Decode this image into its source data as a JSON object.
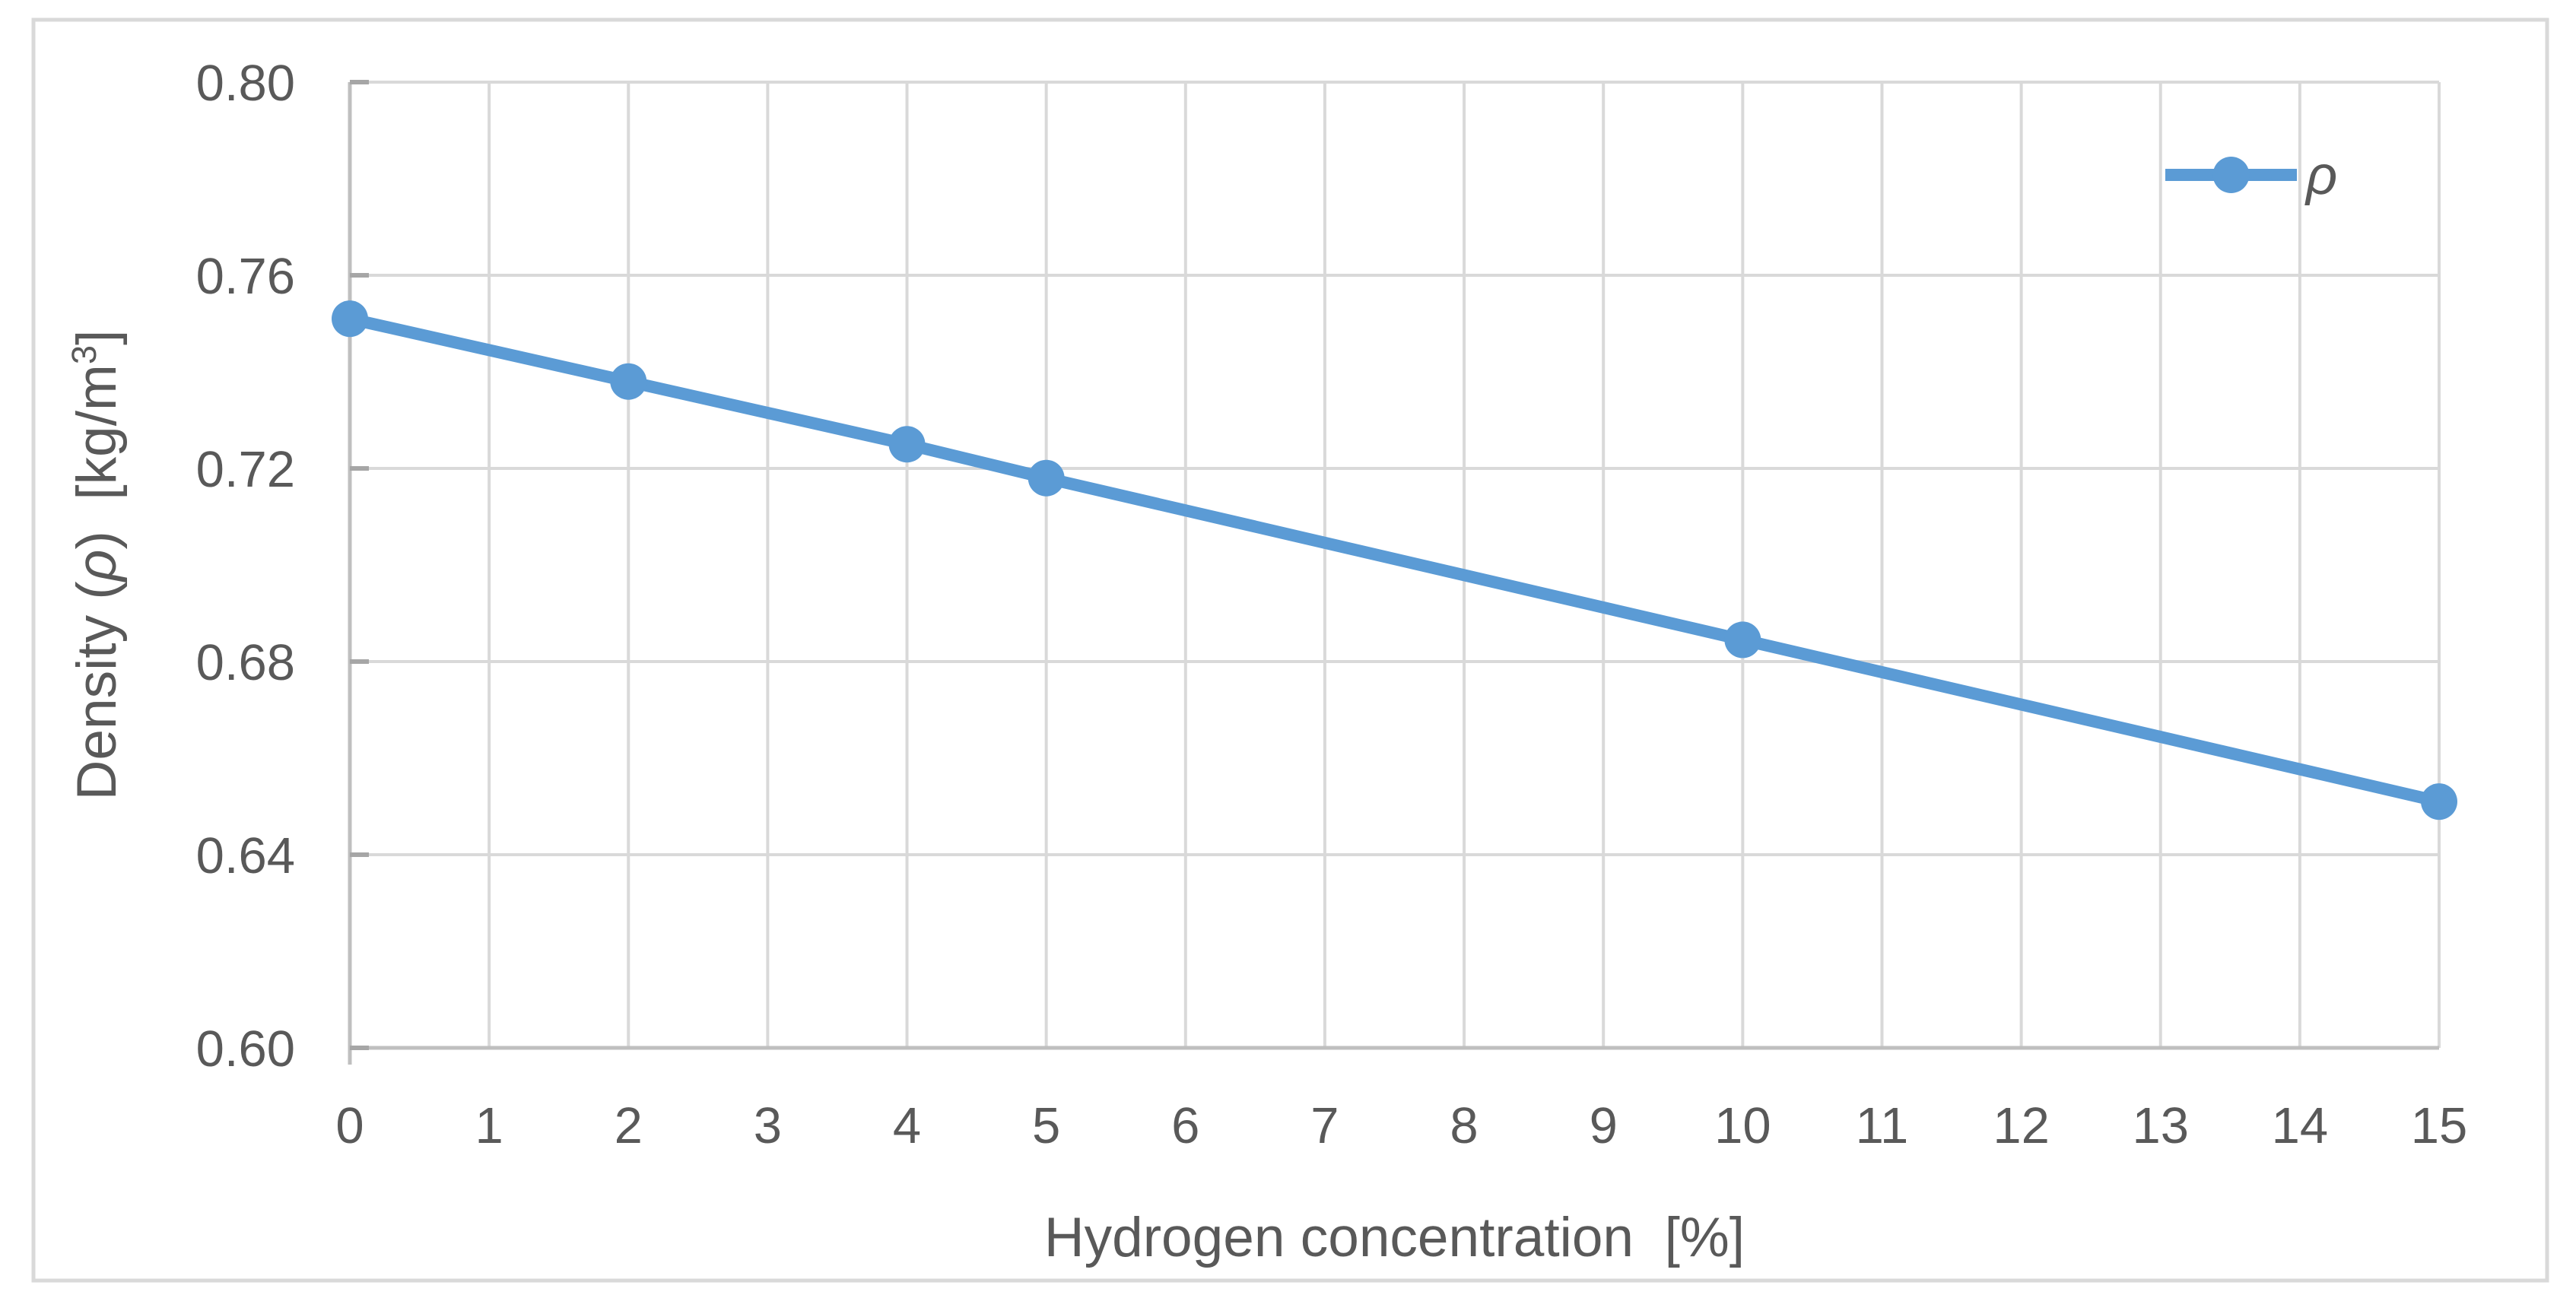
{
  "chart_data": {
    "type": "line",
    "title": "",
    "xlabel": "Hydrogen concentration  [%]",
    "ylabel": "Density (ρ)  [kg/m³]",
    "xlim": [
      0,
      15
    ],
    "ylim": [
      0.6,
      0.8
    ],
    "xticks": [
      0,
      1,
      2,
      3,
      4,
      5,
      6,
      7,
      8,
      9,
      10,
      11,
      12,
      13,
      14,
      15
    ],
    "yticks": [
      0.6,
      0.64,
      0.68,
      0.72,
      0.76,
      0.8
    ],
    "ytick_decimals": 2,
    "grid": "major-both",
    "legend": {
      "position": "top-right-inside",
      "entries": [
        "ρ"
      ]
    },
    "series": [
      {
        "name": "ρ",
        "marker": "circle",
        "color": "#5B9BD5",
        "points": [
          {
            "x": 0,
            "y": 0.751
          },
          {
            "x": 2,
            "y": 0.738
          },
          {
            "x": 4,
            "y": 0.725
          },
          {
            "x": 5,
            "y": 0.718
          },
          {
            "x": 10,
            "y": 0.6845
          },
          {
            "x": 15,
            "y": 0.651
          }
        ]
      }
    ]
  },
  "colors": {
    "series_blue": "#5B9BD5",
    "gridline": "#D9D9D9",
    "axis_line": "#BFBFBF",
    "tick_mark": "#A6A6A6",
    "label_text": "#595959",
    "frame_border": "#D9D9D9",
    "background": "#FFFFFF"
  }
}
